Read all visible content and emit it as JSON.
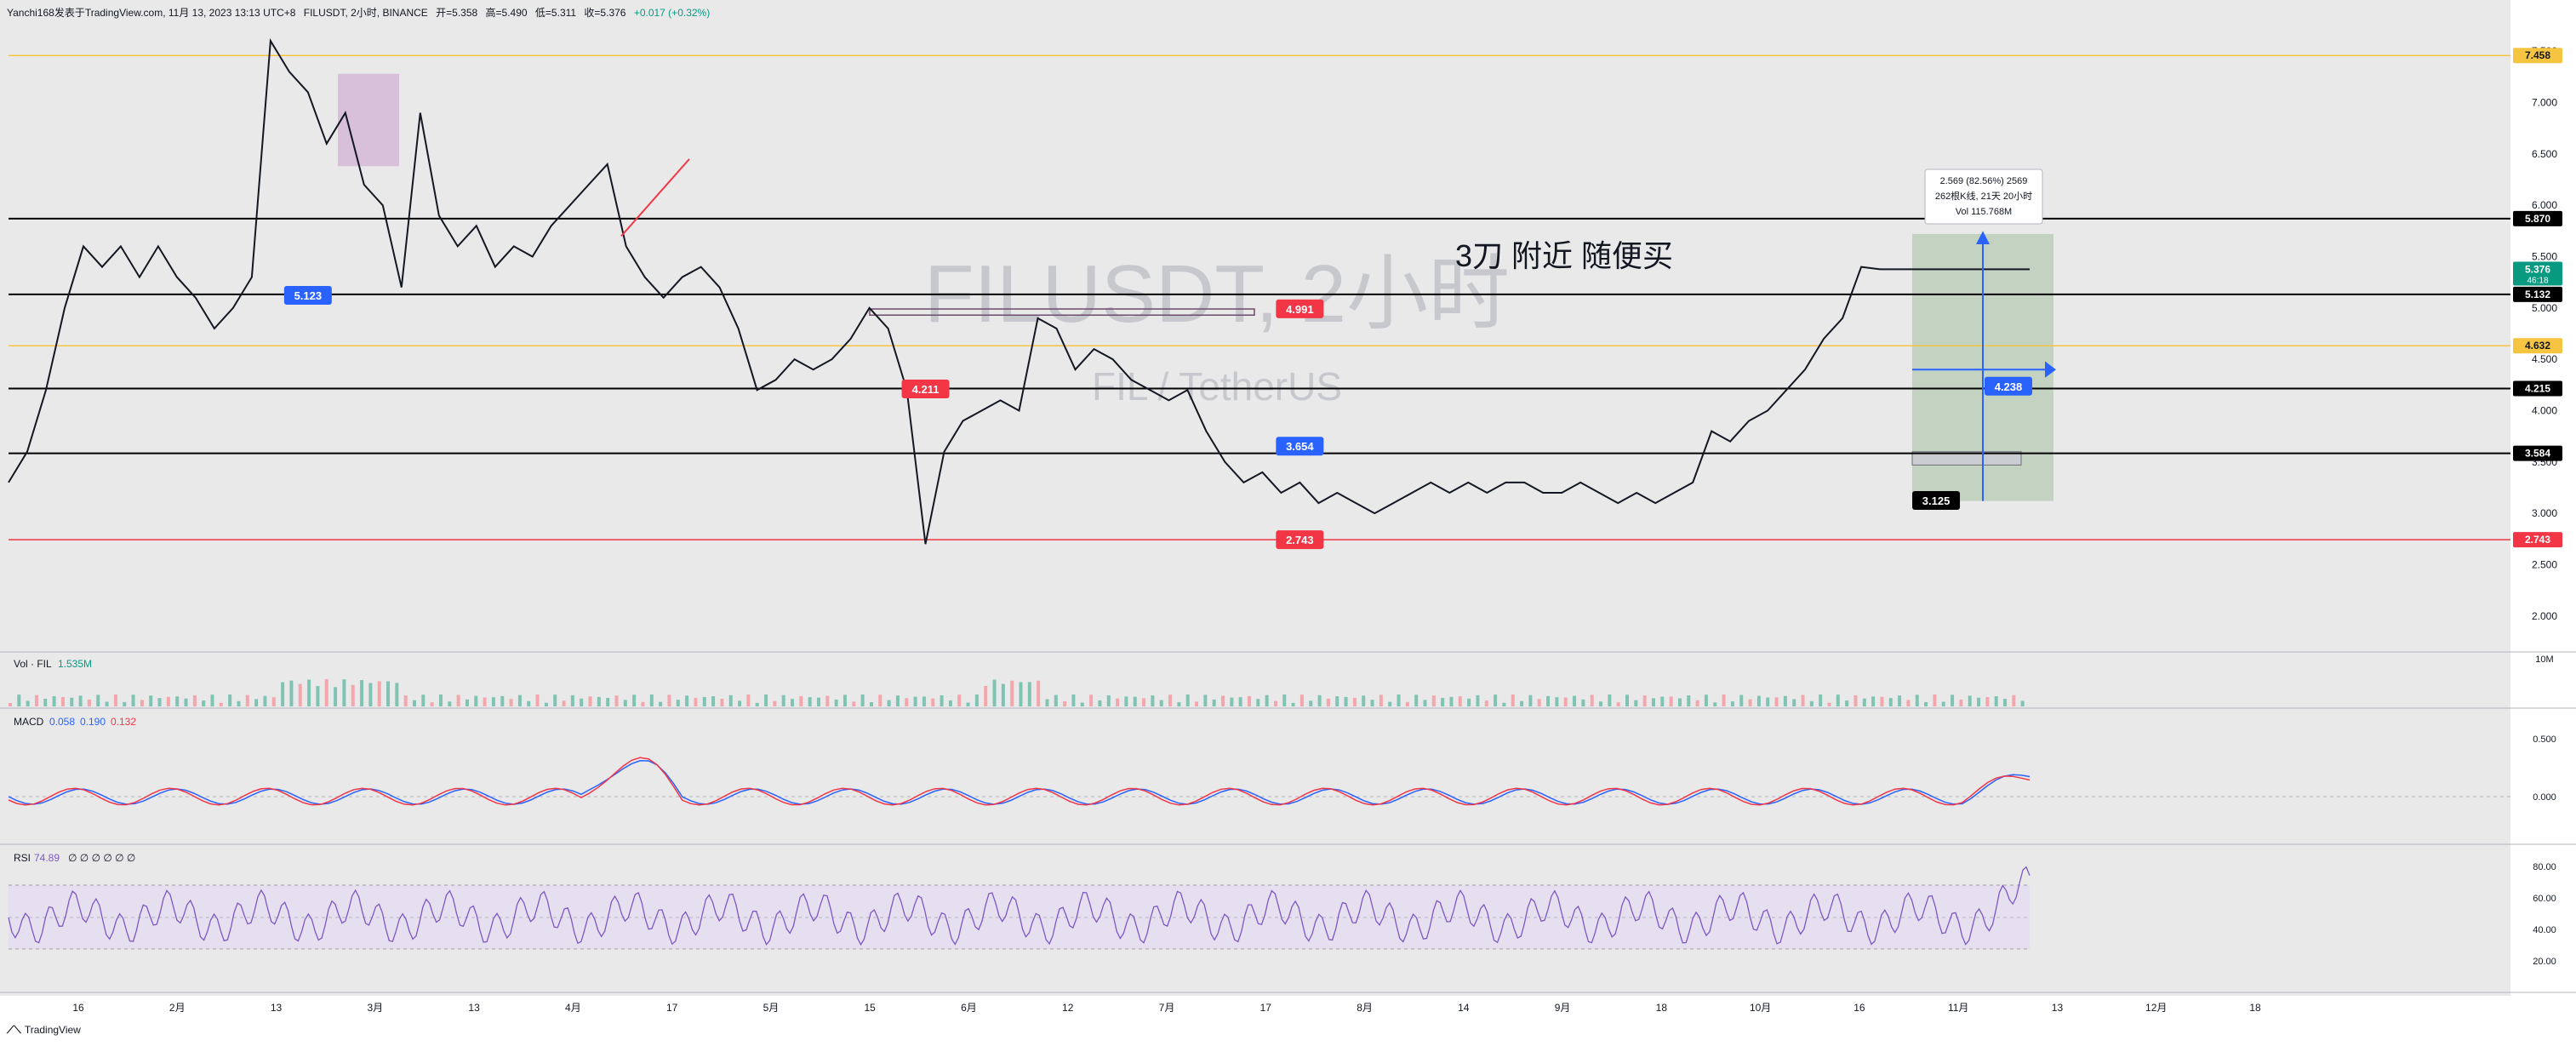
{
  "header": {
    "published": "Yanchi168发表于TradingView.com, 11月 13, 2023 13:13 UTC+8",
    "symbol": "FILUSDT, 2小时, BINANCE",
    "open": "开=5.358",
    "high": "高=5.490",
    "low": "低=5.311",
    "close": "收=5.376",
    "change": "+0.017 (+0.32%)"
  },
  "brand": "TradingView",
  "watermark": {
    "title": "FILUSDT, 2小时",
    "subtitle": "FIL / TetherUS"
  },
  "annotation_text": "3刀 附近 随便买",
  "measure_box": {
    "line1": "2.569 (82.56%) 2569",
    "line2": "262根K线, 21天 20小时",
    "line3": "Vol 115.768M"
  },
  "panes": {
    "volume": {
      "label": "Vol · FIL",
      "value": "1.535M",
      "axis_label": "10M"
    },
    "macd": {
      "label": "MACD",
      "v1": "0.058",
      "v2": "0.190",
      "v3": "0.132",
      "ticks": [
        "0.500",
        "0.000"
      ]
    },
    "rsi": {
      "label": "RSI",
      "value": "74.89",
      "extra": "∅ ∅ ∅ ∅ ∅ ∅",
      "ticks": [
        "80.00",
        "60.00",
        "40.00",
        "20.00"
      ]
    }
  },
  "colors": {
    "up": "#089981",
    "down": "#f23645",
    "bg": "#e9e9ea",
    "rsi": "#7e57c2",
    "macd_line": "#2962ff",
    "signal_line": "#f23645"
  },
  "chart_data": {
    "type": "line",
    "title": "FILUSDT, 2小时",
    "xlabel": "",
    "ylabel": "",
    "x_ticks": [
      "16",
      "2月",
      "13",
      "3月",
      "13",
      "4月",
      "17",
      "5月",
      "15",
      "6月",
      "12",
      "7月",
      "17",
      "8月",
      "14",
      "9月",
      "18",
      "10月",
      "16",
      "11月",
      "13",
      "12月",
      "18"
    ],
    "y_ticks": [
      "2.000",
      "2.500",
      "3.000",
      "3.500",
      "4.000",
      "4.500",
      "5.000",
      "5.500",
      "6.000",
      "6.500",
      "7.000",
      "7.500"
    ],
    "ylim": [
      1.7,
      7.75
    ],
    "series": [
      {
        "x_index": [
          0,
          1,
          2,
          3,
          4,
          5,
          6,
          7,
          8,
          9,
          10,
          11,
          12,
          13,
          14,
          15,
          16,
          17,
          18,
          19,
          20,
          21,
          22,
          23,
          24,
          25,
          26,
          27,
          28,
          29,
          30,
          31,
          32,
          33,
          34,
          35,
          36,
          37,
          38,
          39,
          40,
          41,
          42,
          43,
          44,
          45,
          46,
          47,
          48,
          49,
          50,
          51,
          52,
          53,
          54,
          55,
          56,
          57,
          58,
          59,
          60,
          61,
          62,
          63,
          64,
          65,
          66,
          67,
          68,
          69,
          70,
          71,
          72,
          73,
          74,
          75,
          76,
          77,
          78,
          79,
          80,
          81,
          82,
          83,
          84,
          85,
          86,
          87,
          88,
          89,
          90,
          91,
          92,
          93,
          94,
          95,
          96,
          97,
          98,
          99,
          100,
          101,
          102,
          103,
          104,
          105,
          106,
          107,
          108
        ],
        "values": [
          3.3,
          3.6,
          4.2,
          5.0,
          5.6,
          5.4,
          5.6,
          5.3,
          5.6,
          5.3,
          5.1,
          4.8,
          5.0,
          5.3,
          7.6,
          7.3,
          7.1,
          6.6,
          6.9,
          6.2,
          6.0,
          5.2,
          6.9,
          5.9,
          5.6,
          5.8,
          5.4,
          5.6,
          5.5,
          5.8,
          6.0,
          6.2,
          6.4,
          5.6,
          5.3,
          5.1,
          5.3,
          5.4,
          5.2,
          4.8,
          4.2,
          4.3,
          4.5,
          4.4,
          4.5,
          4.7,
          5.0,
          4.8,
          4.2,
          2.7,
          3.6,
          3.9,
          4.0,
          4.1,
          4.0,
          4.9,
          4.8,
          4.4,
          4.6,
          4.5,
          4.3,
          4.2,
          4.1,
          4.2,
          3.8,
          3.5,
          3.3,
          3.4,
          3.2,
          3.3,
          3.1,
          3.2,
          3.1,
          3.0,
          3.1,
          3.2,
          3.3,
          3.2,
          3.3,
          3.2,
          3.3,
          3.3,
          3.2,
          3.2,
          3.3,
          3.2,
          3.1,
          3.2,
          3.1,
          3.2,
          3.3,
          3.8,
          3.7,
          3.9,
          4.0,
          4.2,
          4.4,
          4.7,
          4.9,
          5.4,
          5.376,
          5.376,
          5.376,
          5.376,
          5.376,
          5.376,
          5.376,
          5.376,
          5.376
        ]
      }
    ],
    "levels": [
      {
        "value": "7.458",
        "color": "#f5c542"
      },
      {
        "value": "5.870",
        "color": "#000000"
      },
      {
        "value": "5.132",
        "color": "#000000"
      },
      {
        "value": "4.632",
        "color": "#f5c542"
      },
      {
        "value": "4.215",
        "color": "#000000"
      },
      {
        "value": "3.584",
        "color": "#000000"
      },
      {
        "value": "2.743",
        "color": "#f23645"
      }
    ],
    "price_tags": [
      {
        "text": "5.123",
        "price": 5.123,
        "x_index": 16,
        "color": "#2962ff"
      },
      {
        "text": "4.211",
        "price": 4.211,
        "x_index": 49,
        "color": "#f23645"
      },
      {
        "text": "4.991",
        "price": 4.991,
        "x_index": 69,
        "color": "#f23645"
      },
      {
        "text": "3.654",
        "price": 3.654,
        "x_index": 69,
        "color": "#2962ff"
      },
      {
        "text": "2.743",
        "price": 2.743,
        "x_index": 69,
        "color": "#f23645"
      },
      {
        "text": "3.125",
        "price": 3.125,
        "x_index": 103,
        "color": "#000000"
      },
      {
        "text": "4.238",
        "price": 4.238,
        "x_index": 116,
        "color": "#2962ff"
      }
    ],
    "last_price": "5.376",
    "countdown": "46:18"
  }
}
